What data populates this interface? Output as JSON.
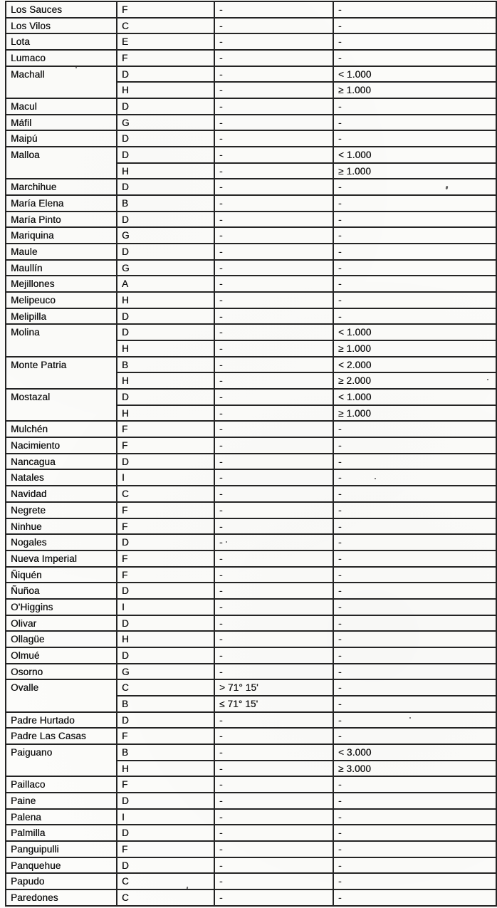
{
  "document": {
    "kind": "scanned-table-page",
    "ink_color": "#242424",
    "paper_color": "#fcfcfa"
  },
  "table": {
    "column_roles": [
      "commune",
      "zone",
      "longitude",
      "altitude"
    ],
    "groups": [
      {
        "commune": "Los Sauces",
        "rows": [
          {
            "cells": [
              "F",
              "-",
              "-"
            ]
          }
        ]
      },
      {
        "commune": "Los Vilos",
        "rows": [
          {
            "cells": [
              "C",
              "-",
              "-"
            ]
          }
        ]
      },
      {
        "commune": "Lota",
        "rows": [
          {
            "cells": [
              "E",
              "-",
              "-"
            ]
          }
        ]
      },
      {
        "commune": "Lumaco",
        "rows": [
          {
            "cells": [
              "F",
              "-",
              "-"
            ]
          }
        ]
      },
      {
        "commune": "Machall",
        "rows": [
          {
            "cells": [
              "D",
              "-",
              "< 1.000"
            ]
          },
          {
            "cells": [
              "H",
              "-",
              "≥ 1.000"
            ]
          }
        ]
      },
      {
        "commune": "Macul",
        "rows": [
          {
            "cells": [
              "D",
              "-",
              "-"
            ]
          }
        ]
      },
      {
        "commune": "Máfil",
        "rows": [
          {
            "cells": [
              "G",
              "-",
              "-"
            ]
          }
        ]
      },
      {
        "commune": "Maipú",
        "rows": [
          {
            "cells": [
              "D",
              "-",
              "-"
            ]
          }
        ]
      },
      {
        "commune": "Malloa",
        "rows": [
          {
            "cells": [
              "D",
              "-",
              "< 1.000"
            ]
          },
          {
            "cells": [
              "H",
              "-",
              "≥ 1.000"
            ]
          }
        ]
      },
      {
        "commune": "Marchihue",
        "rows": [
          {
            "cells": [
              "D",
              "-",
              "-"
            ]
          }
        ]
      },
      {
        "commune": "María Elena",
        "rows": [
          {
            "cells": [
              "B",
              "-",
              "-"
            ]
          }
        ]
      },
      {
        "commune": "María Pinto",
        "rows": [
          {
            "cells": [
              "D",
              "-",
              "-"
            ]
          }
        ]
      },
      {
        "commune": "Mariquina",
        "rows": [
          {
            "cells": [
              "G",
              "-",
              "-"
            ]
          }
        ]
      },
      {
        "commune": "Maule",
        "rows": [
          {
            "cells": [
              "D",
              "-",
              "-"
            ]
          }
        ]
      },
      {
        "commune": "Maullín",
        "rows": [
          {
            "cells": [
              "G",
              "-",
              "-"
            ]
          }
        ]
      },
      {
        "commune": "Mejillones",
        "rows": [
          {
            "cells": [
              "A",
              "-",
              "-"
            ]
          }
        ]
      },
      {
        "commune": "Melipeuco",
        "rows": [
          {
            "cells": [
              "H",
              "-",
              "-"
            ]
          }
        ]
      },
      {
        "commune": "Melipilla",
        "rows": [
          {
            "cells": [
              "D",
              "-",
              "-"
            ]
          }
        ]
      },
      {
        "commune": "Molina",
        "rows": [
          {
            "cells": [
              "D",
              "-",
              "< 1.000"
            ]
          },
          {
            "cells": [
              "H",
              "-",
              "≥ 1.000"
            ]
          }
        ]
      },
      {
        "commune": "Monte Patria",
        "rows": [
          {
            "cells": [
              "B",
              "-",
              "< 2.000"
            ]
          },
          {
            "cells": [
              "H",
              "-",
              "≥ 2.000"
            ]
          }
        ]
      },
      {
        "commune": "Mostazal",
        "rows": [
          {
            "cells": [
              "D",
              "-",
              "< 1.000"
            ]
          },
          {
            "cells": [
              "H",
              "-",
              "≥ 1.000"
            ]
          }
        ]
      },
      {
        "commune": "Mulchén",
        "rows": [
          {
            "cells": [
              "F",
              "-",
              "-"
            ]
          }
        ]
      },
      {
        "commune": "Nacimiento",
        "rows": [
          {
            "cells": [
              "F",
              "-",
              "-"
            ]
          }
        ]
      },
      {
        "commune": "Nancagua",
        "rows": [
          {
            "cells": [
              "D",
              "-",
              "-"
            ]
          }
        ]
      },
      {
        "commune": "Natales",
        "rows": [
          {
            "cells": [
              "I",
              "-",
              "-"
            ]
          }
        ]
      },
      {
        "commune": "Navidad",
        "rows": [
          {
            "cells": [
              "C",
              "-",
              "-"
            ]
          }
        ]
      },
      {
        "commune": "Negrete",
        "rows": [
          {
            "cells": [
              "F",
              "-",
              "-"
            ]
          }
        ]
      },
      {
        "commune": "Ninhue",
        "rows": [
          {
            "cells": [
              "F",
              "-",
              "-"
            ]
          }
        ]
      },
      {
        "commune": "Nogales",
        "rows": [
          {
            "cells": [
              "D",
              "-",
              "-"
            ]
          }
        ]
      },
      {
        "commune": "Nueva Imperial",
        "rows": [
          {
            "cells": [
              "F",
              "-",
              "-"
            ]
          }
        ]
      },
      {
        "commune": "Ñiquén",
        "rows": [
          {
            "cells": [
              "F",
              "-",
              "-"
            ]
          }
        ]
      },
      {
        "commune": "Ñuñoa",
        "rows": [
          {
            "cells": [
              "D",
              "-",
              "-"
            ]
          }
        ]
      },
      {
        "commune": "O'Higgins",
        "rows": [
          {
            "cells": [
              "I",
              "-",
              "-"
            ]
          }
        ]
      },
      {
        "commune": "Olivar",
        "rows": [
          {
            "cells": [
              "D",
              "-",
              "-"
            ]
          }
        ]
      },
      {
        "commune": "Ollagüe",
        "rows": [
          {
            "cells": [
              "H",
              "-",
              "-"
            ]
          }
        ]
      },
      {
        "commune": "Olmué",
        "rows": [
          {
            "cells": [
              "D",
              "-",
              "-"
            ]
          }
        ]
      },
      {
        "commune": "Osorno",
        "rows": [
          {
            "cells": [
              "G",
              "-",
              "-"
            ]
          }
        ]
      },
      {
        "commune": "Ovalle",
        "rows": [
          {
            "cells": [
              "C",
              "> 71° 15'",
              "-"
            ]
          },
          {
            "cells": [
              "B",
              "≤ 71° 15'",
              "-"
            ]
          }
        ]
      },
      {
        "commune": "Padre Hurtado",
        "rows": [
          {
            "cells": [
              "D",
              "-",
              "-"
            ]
          }
        ]
      },
      {
        "commune": "Padre Las Casas",
        "rows": [
          {
            "cells": [
              "F",
              "-",
              "-"
            ]
          }
        ]
      },
      {
        "commune": "Paiguano",
        "rows": [
          {
            "cells": [
              "B",
              "-",
              "< 3.000"
            ]
          },
          {
            "cells": [
              "H",
              "-",
              "≥ 3.000"
            ]
          }
        ]
      },
      {
        "commune": "Paillaco",
        "rows": [
          {
            "cells": [
              "F",
              "-",
              "-"
            ]
          }
        ]
      },
      {
        "commune": "Paine",
        "rows": [
          {
            "cells": [
              "D",
              "-",
              "-"
            ]
          }
        ]
      },
      {
        "commune": "Palena",
        "rows": [
          {
            "cells": [
              "I",
              "-",
              "-"
            ]
          }
        ]
      },
      {
        "commune": "Palmilla",
        "rows": [
          {
            "cells": [
              "D",
              "-",
              "-"
            ]
          }
        ]
      },
      {
        "commune": "Panguipulli",
        "rows": [
          {
            "cells": [
              "F",
              "-",
              "-"
            ]
          }
        ]
      },
      {
        "commune": "Panquehue",
        "rows": [
          {
            "cells": [
              "D",
              "-",
              "-"
            ]
          }
        ]
      },
      {
        "commune": "Papudo",
        "rows": [
          {
            "cells": [
              "C",
              "-",
              "-"
            ]
          }
        ]
      },
      {
        "commune": "Paredones",
        "rows": [
          {
            "cells": [
              "C",
              "-",
              "-"
            ]
          }
        ]
      }
    ]
  }
}
